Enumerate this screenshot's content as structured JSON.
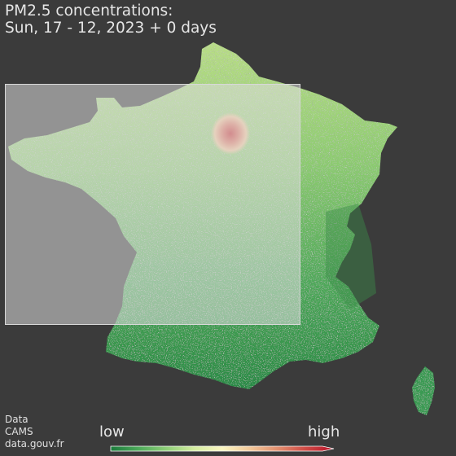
{
  "title": {
    "line1": "PM2.5 concentrations:",
    "line2": "Sun, 17 - 12, 2023 + 0 days"
  },
  "source": {
    "line1": "Data",
    "line2": "CAMS",
    "line3": "data.gouv.fr"
  },
  "legend": {
    "low_label": "low",
    "high_label": "high",
    "colors": [
      "#1b7a3c",
      "#4daa5a",
      "#8fcf78",
      "#d4eda0",
      "#fbf6c2",
      "#f3c99a",
      "#e28e6e",
      "#cf4a45",
      "#b8132a"
    ]
  },
  "map": {
    "background": "#3b3b3b",
    "hotspot_label": ""
  }
}
